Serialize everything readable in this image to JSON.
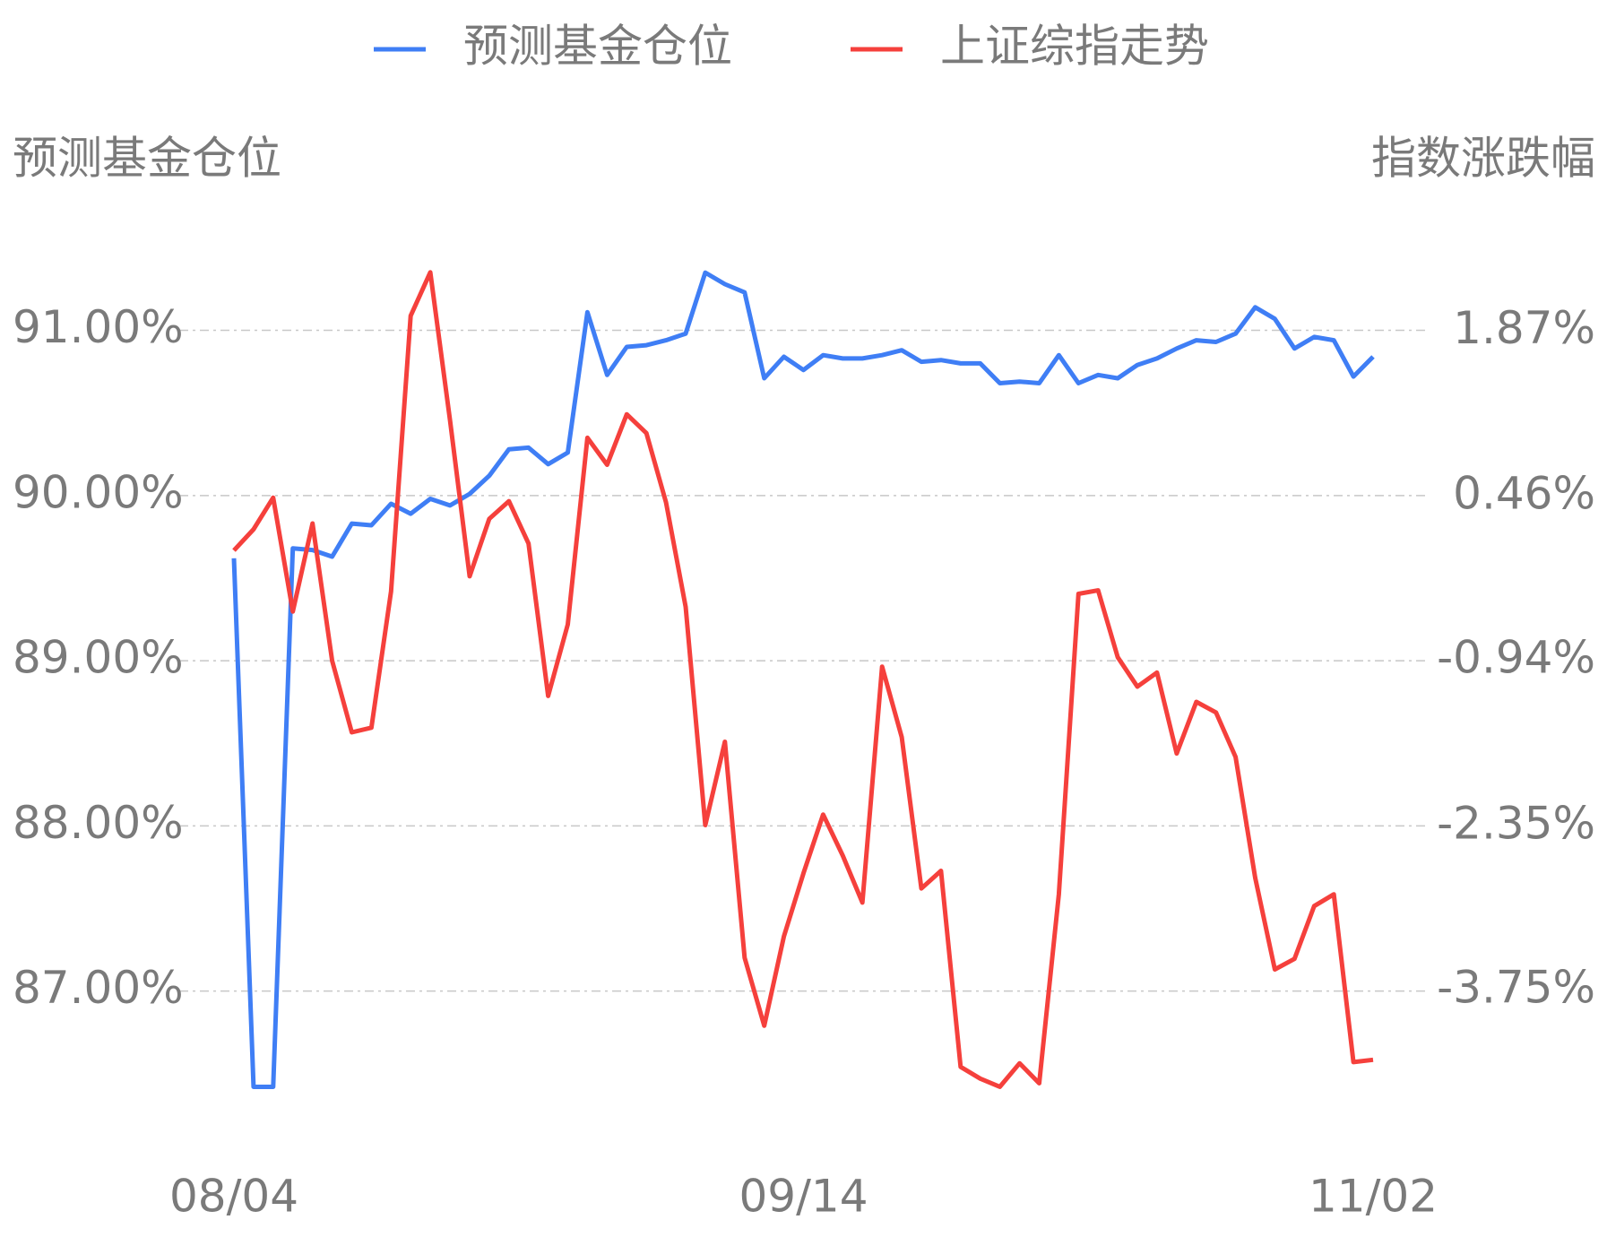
{
  "chart_data": {
    "type": "line",
    "y_axis_label": "预测基金仓位",
    "y2_axis_label": "指数涨跌幅",
    "categories": [
      "08/04",
      null,
      null,
      null,
      null,
      null,
      null,
      null,
      null,
      null,
      null,
      null,
      null,
      null,
      null,
      null,
      null,
      null,
      null,
      null,
      null,
      null,
      null,
      null,
      null,
      null,
      null,
      null,
      null,
      "09/14",
      null,
      null,
      null,
      null,
      null,
      null,
      null,
      null,
      null,
      null,
      null,
      null,
      null,
      null,
      null,
      null,
      null,
      null,
      null,
      null,
      null,
      null,
      null,
      null,
      null,
      null,
      null,
      null,
      "11/02"
    ],
    "series": [
      {
        "name": "预测基金仓位",
        "color": "#3f7ef5",
        "axis": "y",
        "values": [
          89.62,
          86.42,
          86.42,
          89.68,
          89.67,
          89.63,
          89.83,
          89.82,
          89.95,
          89.89,
          89.98,
          89.94,
          90.01,
          90.12,
          90.28,
          90.29,
          90.19,
          90.26,
          91.11,
          90.73,
          90.9,
          90.91,
          90.94,
          90.98,
          91.35,
          91.28,
          91.23,
          90.71,
          90.84,
          90.76,
          90.85,
          90.83,
          90.83,
          90.85,
          90.88,
          90.81,
          90.82,
          90.8,
          90.8,
          90.68,
          90.69,
          90.68,
          90.85,
          90.68,
          90.73,
          90.71,
          90.79,
          90.83,
          90.89,
          90.94,
          90.93,
          90.98,
          91.14,
          91.07,
          90.89,
          90.96,
          90.94,
          90.72,
          90.84
        ]
      },
      {
        "name": "上证综指走势",
        "color": "#f5403c",
        "axis": "y2",
        "values": [
          0.0,
          0.18,
          0.45,
          -0.52,
          0.23,
          -0.94,
          -1.55,
          -1.51,
          -0.35,
          2.0,
          2.37,
          1.11,
          -0.22,
          0.27,
          0.42,
          0.06,
          -1.24,
          -0.63,
          0.96,
          0.73,
          1.16,
          1.0,
          0.41,
          -0.48,
          -2.34,
          -1.63,
          -3.47,
          -4.05,
          -3.29,
          -2.75,
          -2.25,
          -2.6,
          -3.0,
          -0.99,
          -1.59,
          -2.88,
          -2.73,
          -4.4,
          -4.5,
          -4.57,
          -4.37,
          -4.54,
          -2.93,
          -0.37,
          -0.34,
          -0.91,
          -1.16,
          -1.04,
          -1.73,
          -1.29,
          -1.38,
          -1.76,
          -2.79,
          -3.57,
          -3.48,
          -3.03,
          -2.93,
          -4.36,
          -4.34
        ]
      }
    ],
    "ylim": [
      86.2,
      91.6
    ],
    "yticks": [
      {
        "value": 91,
        "label": "91.00%"
      },
      {
        "value": 90,
        "label": "90.00%"
      },
      {
        "value": 89,
        "label": "89.00%"
      },
      {
        "value": 88,
        "label": "88.00%"
      },
      {
        "value": 87,
        "label": "87.00%"
      }
    ],
    "y2lim": [
      -4.88,
      2.72
    ],
    "y2ticks": [
      {
        "value": 1.87,
        "label": "1.87%"
      },
      {
        "value": 0.46,
        "label": "0.46%"
      },
      {
        "value": -0.94,
        "label": "-0.94%"
      },
      {
        "value": -2.35,
        "label": "-2.35%"
      },
      {
        "value": -3.75,
        "label": "-3.75%"
      }
    ],
    "grid": true,
    "legend": "top"
  }
}
